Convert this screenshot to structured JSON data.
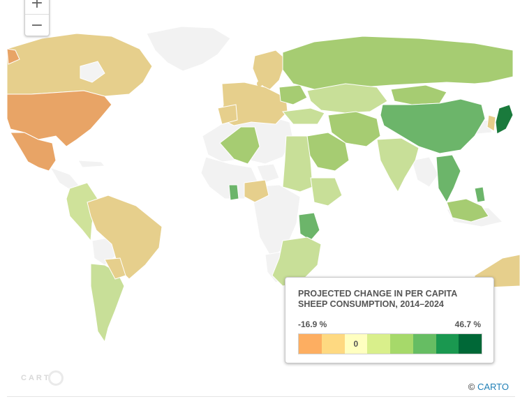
{
  "zoom": {
    "in_label": "+",
    "out_label": "−"
  },
  "legend": {
    "title": "PROJECTED CHANGE IN PER CAPITA SHEEP CONSUMPTION, 2014–2024",
    "min_label": "-16.9 %",
    "max_label": "46.7 %",
    "zero_label": "0",
    "bins": [
      "#fdae61",
      "#fed981",
      "#ffffc0",
      "#d9ef8b",
      "#a6d96a",
      "#66bd63",
      "#1a9850",
      "#006837"
    ]
  },
  "attribution": {
    "prefix": "©",
    "link": "CARTO"
  },
  "logo": {
    "text": "CART"
  },
  "colors": {
    "no_data": "#f3f3f3",
    "orange": "#e8a466",
    "tan": "#e5cd8a",
    "light_green": "#c8df98",
    "mid_green": "#a6cc72",
    "green": "#6cb56a",
    "dark_green": "#1a7a3c"
  }
}
